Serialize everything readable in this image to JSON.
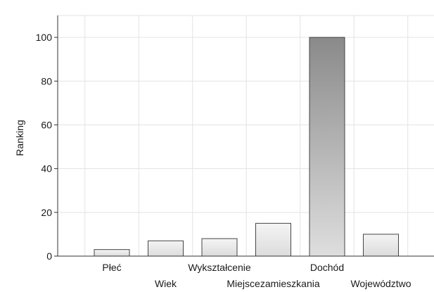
{
  "chart_data": {
    "type": "bar",
    "title": "",
    "xlabel": "",
    "ylabel": "Ranking",
    "ylim": [
      0,
      110
    ],
    "yticks": [
      0,
      20,
      40,
      60,
      80,
      100
    ],
    "categories": [
      "Płeć",
      "Wiek",
      "Wykształcenie",
      "Miejscezamieszkania",
      "Dochód",
      "Województwo"
    ],
    "values": [
      3,
      7,
      8,
      15,
      100,
      10
    ],
    "highlight_category": "Dochód",
    "grid": true,
    "legend": "none",
    "colors": {
      "bar_fill_light": "#e6e6e6",
      "bar_fill_top": "#8a8a8a",
      "bar_fill_bottom": "#dedede",
      "bar_stroke": "#444444",
      "grid": "#e3e3e3",
      "axis": "#333333"
    }
  }
}
